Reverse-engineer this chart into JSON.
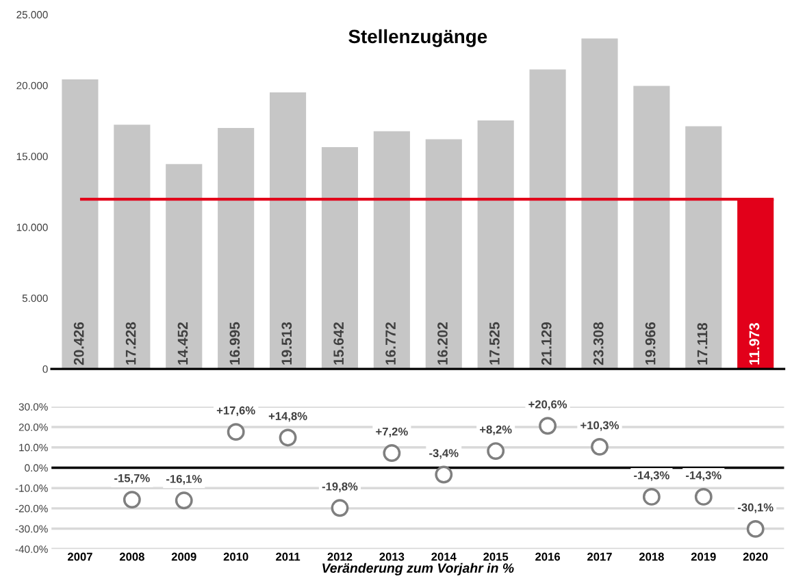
{
  "chart_data": [
    {
      "type": "bar",
      "title": "Stellenzugänge",
      "categories": [
        "2007",
        "2008",
        "2009",
        "2010",
        "2011",
        "2012",
        "2013",
        "2014",
        "2015",
        "2016",
        "2017",
        "2018",
        "2019",
        "2020"
      ],
      "values": [
        20426,
        17228,
        14452,
        16995,
        19513,
        15642,
        16772,
        16202,
        17525,
        21129,
        23308,
        19966,
        17118,
        11973
      ],
      "colors": [
        "#c6c6c6",
        "#c6c6c6",
        "#c6c6c6",
        "#c6c6c6",
        "#c6c6c6",
        "#c6c6c6",
        "#c6c6c6",
        "#c6c6c6",
        "#c6c6c6",
        "#c6c6c6",
        "#c6c6c6",
        "#c6c6c6",
        "#c6c6c6",
        "#e2001a"
      ],
      "value_labels": [
        "20.426",
        "17.228",
        "14.452",
        "16.995",
        "19.513",
        "15.642",
        "16.772",
        "16.202",
        "17.525",
        "21.129",
        "23.308",
        "19.966",
        "17.118",
        "11.973"
      ],
      "ylim": [
        0,
        25000
      ],
      "yticks": [
        {
          "value": 0,
          "label": "0"
        },
        {
          "value": 5000,
          "label": "5.000"
        },
        {
          "value": 10000,
          "label": "10.000"
        },
        {
          "value": 15000,
          "label": "15.000"
        },
        {
          "value": 20000,
          "label": "20.000"
        },
        {
          "value": 25000,
          "label": "25.000"
        }
      ],
      "ref_lines": [
        {
          "axis": "y",
          "value": 11973,
          "color": "#e2001a",
          "line_style": "solid"
        }
      ],
      "tick_labels": "y",
      "grid": false,
      "legend": false
    },
    {
      "type": "scatter",
      "xlabel": "Veränderung zum Vorjahr in %",
      "categories": [
        "2007",
        "2008",
        "2009",
        "2010",
        "2011",
        "2012",
        "2013",
        "2014",
        "2015",
        "2016",
        "2017",
        "2018",
        "2019",
        "2020"
      ],
      "series": [
        {
          "color": "#7f7f7f",
          "values": [
            null,
            -15.7,
            -16.1,
            17.6,
            14.8,
            -19.8,
            7.2,
            -3.4,
            8.2,
            20.6,
            10.3,
            -14.3,
            -14.3,
            -30.1
          ],
          "value_labels": [
            null,
            "-15,7%",
            "-16,1%",
            "+17,6%",
            "+14,8%",
            "-19,8%",
            "+7,2%",
            "-3,4%",
            "+8,2%",
            "+20,6%",
            "+10,3%",
            "-14,3%",
            "-14,3%",
            "-30,1%"
          ]
        }
      ],
      "ylim": [
        -40,
        30
      ],
      "yticks": [
        {
          "value": -40,
          "label": "-40.0%"
        },
        {
          "value": -30,
          "label": "-30.0%"
        },
        {
          "value": -20,
          "label": "-20.0%"
        },
        {
          "value": -10,
          "label": "-10.0%"
        },
        {
          "value": 0,
          "label": "0.0%"
        },
        {
          "value": 10,
          "label": "10.0%"
        },
        {
          "value": 20,
          "label": "20.0%"
        },
        {
          "value": 30,
          "label": "30.0%"
        }
      ],
      "ref_lines": [
        {
          "axis": "y",
          "value": 0,
          "color": "#000000",
          "line_style": "solid"
        }
      ],
      "marker": "circle",
      "grid": "y",
      "legend": false
    }
  ]
}
